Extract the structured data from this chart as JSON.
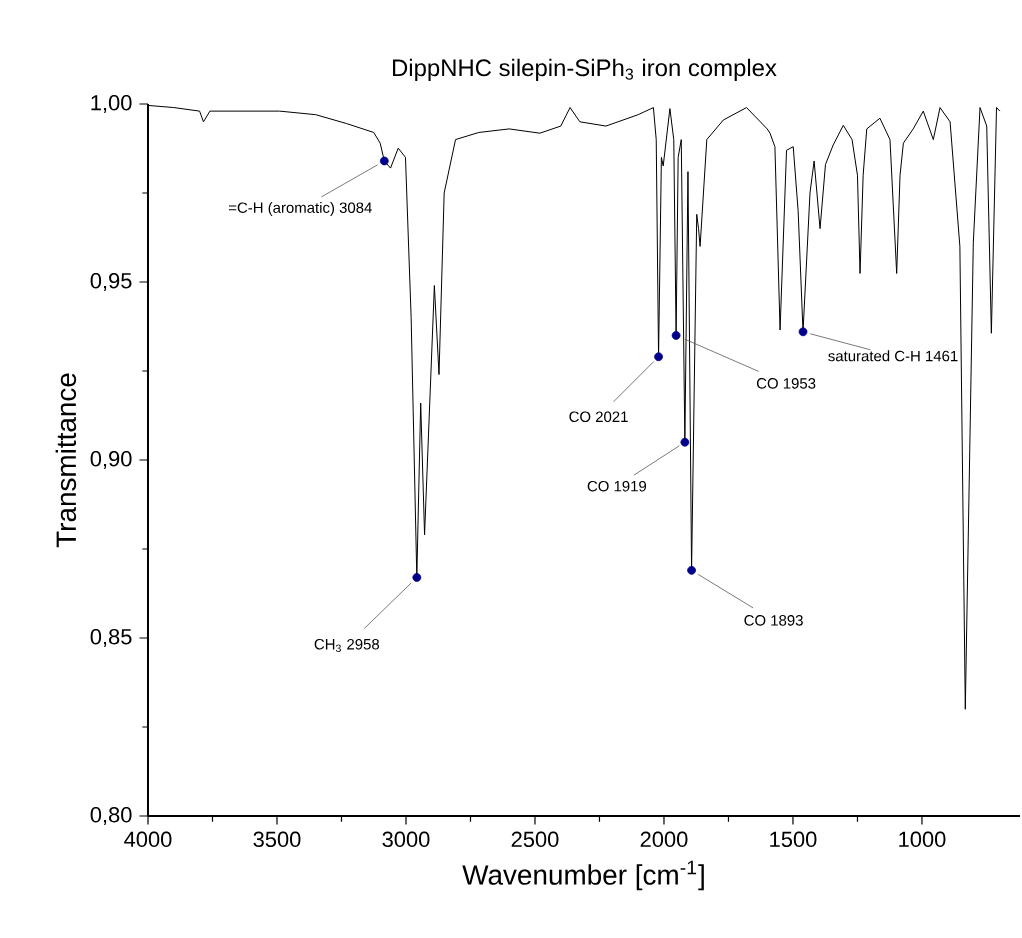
{
  "chart_data": {
    "type": "line",
    "title": "DippNHC silepin-SiPh$_{3}$ iron complex",
    "xlabel": "Wavenumber [cm$^{-1}$]",
    "ylabel": "Transmittance",
    "xlim": [
      4000,
      620
    ],
    "ylim": [
      0.8,
      1.0
    ],
    "xticks": [
      4000,
      3500,
      3000,
      2500,
      2000,
      1500,
      1000
    ],
    "yticks": [
      {
        "value": 0.8,
        "label": "0,80"
      },
      {
        "value": 0.85,
        "label": "0,85"
      },
      {
        "value": 0.9,
        "label": "0,90"
      },
      {
        "value": 0.95,
        "label": "0,95"
      },
      {
        "value": 1.0,
        "label": "1,00"
      }
    ],
    "series": [
      {
        "color": "#000000",
        "x": [
          4000,
          3900,
          3800,
          3785,
          3760,
          3650,
          3490,
          3350,
          3230,
          3125,
          3100,
          3084,
          3060,
          3030,
          3002,
          2980,
          2958,
          2943,
          2928,
          2890,
          2872,
          2852,
          2808,
          2718,
          2600,
          2481,
          2400,
          2364,
          2326,
          2225,
          2100,
          2041,
          2030,
          2021,
          2010,
          2003,
          1977,
          1962,
          1953,
          1945,
          1933,
          1919,
          1907,
          1893,
          1873,
          1866,
          1860,
          1834,
          1770,
          1680,
          1600,
          1589,
          1570,
          1550,
          1525,
          1499,
          1480,
          1461,
          1434,
          1418,
          1395,
          1374,
          1344,
          1305,
          1271,
          1250,
          1240,
          1228,
          1214,
          1163,
          1124,
          1098,
          1085,
          1072,
          1034,
          995,
          956,
          930,
          891,
          853,
          832,
          801,
          775,
          749,
          731,
          711,
          698
        ],
        "values": [
          0.9996,
          0.999,
          0.998,
          0.995,
          0.998,
          0.998,
          0.998,
          0.997,
          0.9945,
          0.992,
          0.989,
          0.984,
          0.982,
          0.9876,
          0.985,
          0.94,
          0.867,
          0.916,
          0.879,
          0.949,
          0.924,
          0.975,
          0.99,
          0.992,
          0.993,
          0.9918,
          0.9938,
          0.999,
          0.995,
          0.9938,
          0.997,
          0.999,
          0.99,
          0.929,
          0.985,
          0.9826,
          0.9987,
          0.99,
          0.935,
          0.985,
          0.99,
          0.905,
          0.981,
          0.869,
          0.969,
          0.965,
          0.96,
          0.99,
          0.9955,
          0.999,
          0.993,
          0.9918,
          0.988,
          0.9365,
          0.987,
          0.988,
          0.97,
          0.936,
          0.975,
          0.984,
          0.965,
          0.983,
          0.9885,
          0.994,
          0.99,
          0.98,
          0.9524,
          0.98,
          0.993,
          0.996,
          0.99,
          0.9524,
          0.98,
          0.989,
          0.993,
          0.998,
          0.99,
          0.999,
          0.995,
          0.96,
          0.83,
          0.961,
          0.999,
          0.9938,
          0.9356,
          0.999,
          0.998
        ]
      },
      {
        "type": "scatter",
        "color": "#00008b",
        "x": [
          3084,
          2958,
          2021,
          1953,
          1919,
          1893,
          1461
        ],
        "values": [
          0.984,
          0.867,
          0.929,
          0.935,
          0.905,
          0.869,
          0.936
        ]
      }
    ],
    "annotations": [
      {
        "text": "=C-H (aromatic) 3084",
        "x": 3084,
        "y": 0.984
      },
      {
        "text": "CH$_{3}$ 2958",
        "x": 2958,
        "y": 0.867
      },
      {
        "text": "CO 2021",
        "x": 2021,
        "y": 0.929
      },
      {
        "text": "CO 1953",
        "x": 1953,
        "y": 0.935
      },
      {
        "text": "CO 1919",
        "x": 1919,
        "y": 0.905
      },
      {
        "text": "CO 1893",
        "x": 1893,
        "y": 0.869
      },
      {
        "text": "saturated C-H 1461",
        "x": 1461,
        "y": 0.936
      }
    ]
  }
}
